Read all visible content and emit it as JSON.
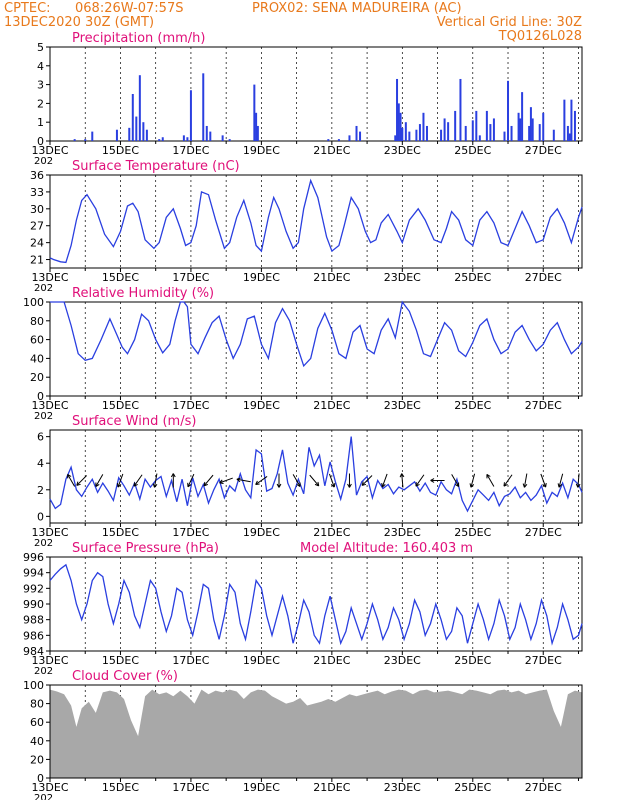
{
  "header": {
    "line1_left": "CPTEC:",
    "coords": "068:26W-07:57S",
    "station": "PROX02: SENA MADUREIRA (AC)",
    "init": "13DEC2020 30Z (GMT)",
    "grid_line": "Vertical Grid Line: 30Z",
    "model_code": "TQ0126L028"
  },
  "colors": {
    "header": "#e8791c",
    "panel_title": "#e0107a",
    "series": "#2a3fe0",
    "cloud": "#a8a8a8",
    "arrow": "#000000"
  },
  "x_axis": {
    "labels": [
      "13DEC",
      "15DEC",
      "17DEC",
      "19DEC",
      "21DEC",
      "23DEC",
      "25DEC",
      "27DEC"
    ],
    "year_fragment": "202",
    "start_day": 13,
    "end_day": 28.1
  },
  "chart_data": [
    {
      "id": "precip",
      "type": "bar",
      "title": "Precipitation (mm/h)",
      "ylim": [
        0,
        5
      ],
      "yticks": [
        0,
        1,
        2,
        3,
        4,
        5
      ],
      "grid": "vertical dashed",
      "x": [
        13.7,
        14.0,
        14.2,
        14.9,
        15.25,
        15.35,
        15.45,
        15.55,
        15.65,
        15.75,
        16.1,
        16.2,
        16.8,
        16.9,
        17.0,
        17.35,
        17.45,
        17.55,
        17.9,
        18.1,
        18.8,
        18.85,
        18.9,
        20.9,
        21.2,
        21.5,
        21.7,
        21.8,
        22.8,
        22.85,
        22.9,
        22.95,
        23.0,
        23.1,
        23.2,
        23.4,
        23.5,
        23.6,
        23.7,
        24.1,
        24.2,
        24.3,
        24.5,
        24.65,
        24.8,
        25.0,
        25.1,
        25.2,
        25.4,
        25.5,
        25.6,
        25.9,
        26.0,
        26.1,
        26.3,
        26.35,
        26.4,
        26.6,
        26.65,
        26.7,
        26.9,
        27.0,
        27.3,
        27.6,
        27.7,
        27.75,
        27.8,
        27.9
      ],
      "values": [
        0.1,
        0.1,
        0.5,
        0.6,
        0.7,
        2.5,
        1.3,
        3.5,
        1.0,
        0.6,
        0.1,
        0.2,
        0.3,
        0.2,
        2.7,
        3.6,
        0.8,
        0.5,
        0.3,
        0.1,
        3.0,
        1.5,
        0.8,
        0.1,
        0.1,
        0.3,
        0.8,
        0.5,
        0.3,
        3.3,
        2.0,
        1.5,
        0.7,
        1.0,
        0.5,
        0.6,
        0.9,
        1.5,
        0.8,
        0.6,
        1.2,
        1.0,
        1.6,
        3.3,
        0.8,
        1.1,
        1.6,
        0.3,
        1.6,
        0.9,
        1.2,
        0.5,
        3.2,
        0.8,
        1.5,
        1.2,
        2.6,
        0.8,
        1.8,
        1.2,
        0.9,
        1.5,
        0.6,
        2.2,
        0.8,
        0.4,
        2.2,
        1.6
      ]
    },
    {
      "id": "temp",
      "type": "line",
      "title": "Surface Temperature (nC)",
      "ylim": [
        19.5,
        36
      ],
      "yticks": [
        21,
        24,
        27,
        30,
        33,
        36
      ],
      "grid": "vertical dashed",
      "x": [
        13.0,
        13.1,
        13.3,
        13.45,
        13.6,
        13.75,
        13.9,
        14.05,
        14.3,
        14.55,
        14.8,
        15.0,
        15.2,
        15.35,
        15.5,
        15.7,
        15.95,
        16.1,
        16.3,
        16.5,
        16.7,
        16.85,
        17.0,
        17.15,
        17.3,
        17.5,
        17.7,
        17.95,
        18.1,
        18.3,
        18.5,
        18.7,
        18.85,
        19.0,
        19.2,
        19.35,
        19.5,
        19.7,
        19.9,
        20.05,
        20.2,
        20.4,
        20.6,
        20.85,
        21.0,
        21.2,
        21.35,
        21.55,
        21.75,
        21.95,
        22.1,
        22.25,
        22.4,
        22.6,
        22.85,
        23.0,
        23.2,
        23.45,
        23.65,
        23.9,
        24.1,
        24.25,
        24.4,
        24.6,
        24.8,
        25.0,
        25.2,
        25.4,
        25.6,
        25.8,
        26.0,
        26.2,
        26.4,
        26.6,
        26.8,
        27.0,
        27.2,
        27.4,
        27.6,
        27.8,
        28.0,
        28.1
      ],
      "values": [
        21.3,
        21.0,
        20.6,
        20.5,
        23.5,
        28.0,
        31.5,
        32.5,
        30.0,
        25.5,
        23.3,
        26.0,
        30.5,
        31.0,
        29.5,
        24.5,
        23.0,
        24.0,
        28.5,
        30.0,
        26.5,
        23.5,
        24.0,
        27.0,
        33.0,
        32.5,
        28.0,
        23.0,
        24.0,
        28.5,
        31.5,
        27.5,
        23.5,
        22.5,
        28.5,
        32.0,
        30.0,
        26.0,
        23.0,
        24.0,
        30.0,
        35.0,
        32.0,
        25.0,
        22.5,
        23.5,
        27.0,
        32.0,
        30.0,
        26.0,
        24.0,
        24.5,
        27.5,
        29.0,
        26.0,
        24.0,
        28.0,
        30.0,
        28.0,
        24.5,
        24.0,
        26.5,
        29.5,
        28.0,
        24.5,
        23.5,
        28.0,
        29.5,
        27.5,
        24.0,
        23.5,
        26.5,
        29.5,
        27.0,
        24.0,
        24.5,
        28.5,
        30.0,
        27.5,
        24.0,
        28.5,
        30.3
      ]
    },
    {
      "id": "rh",
      "type": "line",
      "title": "Relative Humidity (%)",
      "ylim": [
        0,
        100
      ],
      "yticks": [
        0,
        20,
        40,
        60,
        80,
        100
      ],
      "grid": "vertical dashed",
      "x": [
        13.0,
        13.2,
        13.4,
        13.6,
        13.8,
        14.0,
        14.2,
        14.45,
        14.7,
        14.9,
        15.05,
        15.2,
        15.4,
        15.6,
        15.8,
        16.0,
        16.2,
        16.4,
        16.55,
        16.7,
        16.8,
        16.9,
        17.0,
        17.2,
        17.4,
        17.6,
        17.8,
        18.0,
        18.2,
        18.4,
        18.6,
        18.8,
        19.0,
        19.2,
        19.4,
        19.6,
        19.8,
        20.0,
        20.2,
        20.4,
        20.6,
        20.8,
        21.0,
        21.2,
        21.4,
        21.6,
        21.8,
        22.0,
        22.2,
        22.4,
        22.6,
        22.8,
        23.0,
        23.2,
        23.4,
        23.6,
        23.8,
        24.0,
        24.2,
        24.4,
        24.6,
        24.8,
        25.0,
        25.2,
        25.4,
        25.6,
        25.8,
        26.0,
        26.2,
        26.4,
        26.6,
        26.8,
        27.0,
        27.2,
        27.4,
        27.6,
        27.8,
        28.0,
        28.1
      ],
      "values": [
        100,
        100,
        100,
        75,
        45,
        38,
        40,
        60,
        82,
        65,
        52,
        45,
        60,
        87,
        80,
        60,
        46,
        55,
        80,
        100,
        100,
        95,
        55,
        45,
        62,
        78,
        85,
        60,
        40,
        55,
        82,
        85,
        55,
        40,
        78,
        93,
        80,
        55,
        32,
        40,
        72,
        88,
        70,
        45,
        40,
        68,
        75,
        50,
        45,
        70,
        82,
        62,
        100,
        90,
        70,
        45,
        42,
        60,
        78,
        70,
        48,
        42,
        57,
        75,
        82,
        60,
        45,
        50,
        68,
        75,
        60,
        48,
        55,
        70,
        78,
        60,
        45,
        52,
        58
      ]
    },
    {
      "id": "wind",
      "type": "line",
      "title": "Surface Wind (m/s)",
      "ylim": [
        -0.5,
        6.5
      ],
      "yticks": [
        0,
        2,
        4,
        6
      ],
      "grid": "vertical dashed",
      "x": [
        13.0,
        13.15,
        13.3,
        13.45,
        13.6,
        13.75,
        13.9,
        14.05,
        14.2,
        14.35,
        14.5,
        14.65,
        14.8,
        14.95,
        15.1,
        15.25,
        15.4,
        15.55,
        15.7,
        15.85,
        16.0,
        16.15,
        16.3,
        16.45,
        16.6,
        16.75,
        16.9,
        17.05,
        17.2,
        17.35,
        17.5,
        17.65,
        17.8,
        17.95,
        18.1,
        18.25,
        18.4,
        18.55,
        18.7,
        18.85,
        19.0,
        19.15,
        19.3,
        19.45,
        19.6,
        19.75,
        19.9,
        20.05,
        20.2,
        20.35,
        20.5,
        20.65,
        20.8,
        20.95,
        21.1,
        21.25,
        21.4,
        21.55,
        21.7,
        21.85,
        22.0,
        22.15,
        22.3,
        22.45,
        22.6,
        22.75,
        22.9,
        23.05,
        23.2,
        23.35,
        23.5,
        23.65,
        23.8,
        23.95,
        24.1,
        24.25,
        24.4,
        24.55,
        24.7,
        24.85,
        25.0,
        25.15,
        25.3,
        25.45,
        25.6,
        25.75,
        25.9,
        26.05,
        26.2,
        26.35,
        26.5,
        26.65,
        26.8,
        26.95,
        27.1,
        27.25,
        27.4,
        27.55,
        27.7,
        27.85,
        28.0,
        28.1
      ],
      "values": [
        1.3,
        0.6,
        0.9,
        2.8,
        3.7,
        2.0,
        1.5,
        2.2,
        2.8,
        1.8,
        2.5,
        1.9,
        1.2,
        2.9,
        2.3,
        1.6,
        2.5,
        1.3,
        2.8,
        2.2,
        2.7,
        3.0,
        1.5,
        2.7,
        1.1,
        2.8,
        0.8,
        2.9,
        1.5,
        2.4,
        1.0,
        2.0,
        2.8,
        1.4,
        2.3,
        1.9,
        3.2,
        2.0,
        1.4,
        5.0,
        4.7,
        1.9,
        2.1,
        3.2,
        5.0,
        2.5,
        1.6,
        2.8,
        1.7,
        5.2,
        3.8,
        4.6,
        2.3,
        4.1,
        2.6,
        1.3,
        2.8,
        6.0,
        1.6,
        2.6,
        3.0,
        1.4,
        2.7,
        2.1,
        2.4,
        1.7,
        2.2,
        2.0,
        2.3,
        2.6,
        1.9,
        2.5,
        1.8,
        1.6,
        2.6,
        2.0,
        1.7,
        2.8,
        1.2,
        0.4,
        1.2,
        2.0,
        1.6,
        1.2,
        1.8,
        0.8,
        1.5,
        1.7,
        2.2,
        1.4,
        1.8,
        1.2,
        1.6,
        2.3,
        1.0,
        1.8,
        1.5,
        2.5,
        1.4,
        2.8,
        2.4,
        1.8
      ],
      "arrows": {
        "x": [
          13.6,
          13.9,
          14.4,
          15.0,
          15.5,
          16.0,
          16.5,
          17.0,
          17.5,
          18.0,
          18.5,
          19.0,
          19.5,
          20.0,
          20.5,
          21.0,
          21.5,
          22.0,
          22.5,
          23.0,
          23.5,
          24.0,
          24.5,
          25.0,
          25.5,
          26.0,
          26.5,
          27.0,
          27.5,
          28.0
        ],
        "angle_deg": [
          120,
          225,
          240,
          250,
          235,
          260,
          90,
          245,
          230,
          200,
          170,
          215,
          270,
          300,
          310,
          290,
          270,
          225,
          250,
          95,
          235,
          180,
          300,
          255,
          120,
          235,
          260,
          290,
          255,
          265
        ]
      }
    },
    {
      "id": "pressure",
      "type": "line",
      "title": "Surface Pressure (hPa)",
      "annotation": "Model Altitude: 160.403 m",
      "ylim": [
        984,
        996
      ],
      "yticks": [
        984,
        986,
        988,
        990,
        992,
        994,
        996
      ],
      "grid": "vertical dashed",
      "x": [
        13.0,
        13.15,
        13.3,
        13.45,
        13.6,
        13.75,
        13.9,
        14.05,
        14.2,
        14.35,
        14.5,
        14.65,
        14.8,
        14.95,
        15.1,
        15.25,
        15.4,
        15.55,
        15.7,
        15.85,
        16.0,
        16.15,
        16.3,
        16.45,
        16.6,
        16.75,
        16.9,
        17.05,
        17.2,
        17.35,
        17.5,
        17.65,
        17.8,
        17.95,
        18.1,
        18.25,
        18.4,
        18.55,
        18.7,
        18.85,
        19.0,
        19.15,
        19.3,
        19.45,
        19.6,
        19.75,
        19.9,
        20.05,
        20.2,
        20.35,
        20.5,
        20.65,
        20.8,
        20.95,
        21.1,
        21.25,
        21.4,
        21.55,
        21.7,
        21.85,
        22.0,
        22.15,
        22.3,
        22.45,
        22.6,
        22.75,
        22.9,
        23.05,
        23.2,
        23.35,
        23.5,
        23.65,
        23.8,
        23.95,
        24.1,
        24.25,
        24.4,
        24.55,
        24.7,
        24.85,
        25.0,
        25.15,
        25.3,
        25.45,
        25.6,
        25.75,
        25.9,
        26.05,
        26.2,
        26.35,
        26.5,
        26.65,
        26.8,
        26.95,
        27.1,
        27.25,
        27.4,
        27.55,
        27.7,
        27.85,
        28.0,
        28.1
      ],
      "values": [
        993.0,
        993.8,
        994.5,
        995.0,
        993.0,
        990.0,
        988.0,
        990.0,
        993.0,
        994.0,
        993.5,
        990.0,
        987.5,
        990.0,
        993.0,
        991.5,
        988.5,
        987.0,
        990.0,
        993.0,
        992.0,
        989.0,
        986.5,
        988.5,
        992.0,
        991.5,
        988.0,
        986.0,
        989.0,
        992.5,
        992.0,
        988.0,
        985.5,
        988.5,
        992.5,
        991.5,
        987.5,
        985.5,
        989.0,
        993.0,
        992.0,
        988.5,
        986.0,
        988.5,
        991.0,
        988.5,
        985.0,
        987.5,
        990.5,
        989.0,
        986.0,
        985.0,
        988.5,
        991.0,
        988.0,
        985.0,
        986.5,
        989.5,
        987.5,
        985.5,
        987.5,
        990.0,
        988.0,
        985.5,
        987.0,
        989.5,
        988.0,
        985.5,
        987.5,
        990.5,
        989.0,
        986.0,
        987.5,
        990.0,
        988.0,
        985.5,
        986.5,
        989.5,
        988.5,
        985.0,
        987.5,
        990.0,
        988.0,
        985.5,
        987.5,
        990.5,
        988.5,
        985.5,
        987.0,
        990.0,
        988.0,
        985.5,
        987.5,
        990.5,
        988.5,
        985.0,
        987.0,
        990.0,
        988.0,
        985.5,
        986.0,
        987.5
      ]
    },
    {
      "id": "cloud",
      "type": "area",
      "title": "Cloud Cover (%)",
      "ylim": [
        0,
        100
      ],
      "yticks": [
        0,
        20,
        40,
        60,
        80,
        100
      ],
      "grid": "vertical dashed",
      "x": [
        13.0,
        13.2,
        13.4,
        13.6,
        13.75,
        13.9,
        14.1,
        14.3,
        14.5,
        14.7,
        14.9,
        15.1,
        15.3,
        15.5,
        15.7,
        15.9,
        16.1,
        16.3,
        16.5,
        16.7,
        16.9,
        17.1,
        17.3,
        17.5,
        17.7,
        17.9,
        18.1,
        18.3,
        18.5,
        18.7,
        18.9,
        19.1,
        19.3,
        19.5,
        19.7,
        19.9,
        20.1,
        20.3,
        20.5,
        20.7,
        20.9,
        21.1,
        21.3,
        21.5,
        21.7,
        21.9,
        22.1,
        22.3,
        22.5,
        22.7,
        22.9,
        23.1,
        23.3,
        23.5,
        23.7,
        23.9,
        24.1,
        24.3,
        24.5,
        24.7,
        24.9,
        25.1,
        25.3,
        25.5,
        25.7,
        25.9,
        26.1,
        26.3,
        26.5,
        26.7,
        26.9,
        27.1,
        27.3,
        27.5,
        27.7,
        27.9,
        28.1
      ],
      "values": [
        95,
        93,
        90,
        78,
        55,
        75,
        82,
        70,
        92,
        94,
        92,
        85,
        62,
        45,
        88,
        95,
        90,
        92,
        88,
        94,
        88,
        80,
        95,
        90,
        94,
        92,
        95,
        93,
        85,
        92,
        95,
        94,
        88,
        84,
        80,
        82,
        86,
        78,
        80,
        82,
        85,
        82,
        86,
        90,
        88,
        90,
        92,
        94,
        90,
        93,
        95,
        94,
        90,
        94,
        95,
        92,
        93,
        94,
        92,
        90,
        95,
        94,
        92,
        90,
        94,
        95,
        92,
        94,
        90,
        92,
        94,
        95,
        72,
        55,
        90,
        94,
        92
      ]
    }
  ]
}
